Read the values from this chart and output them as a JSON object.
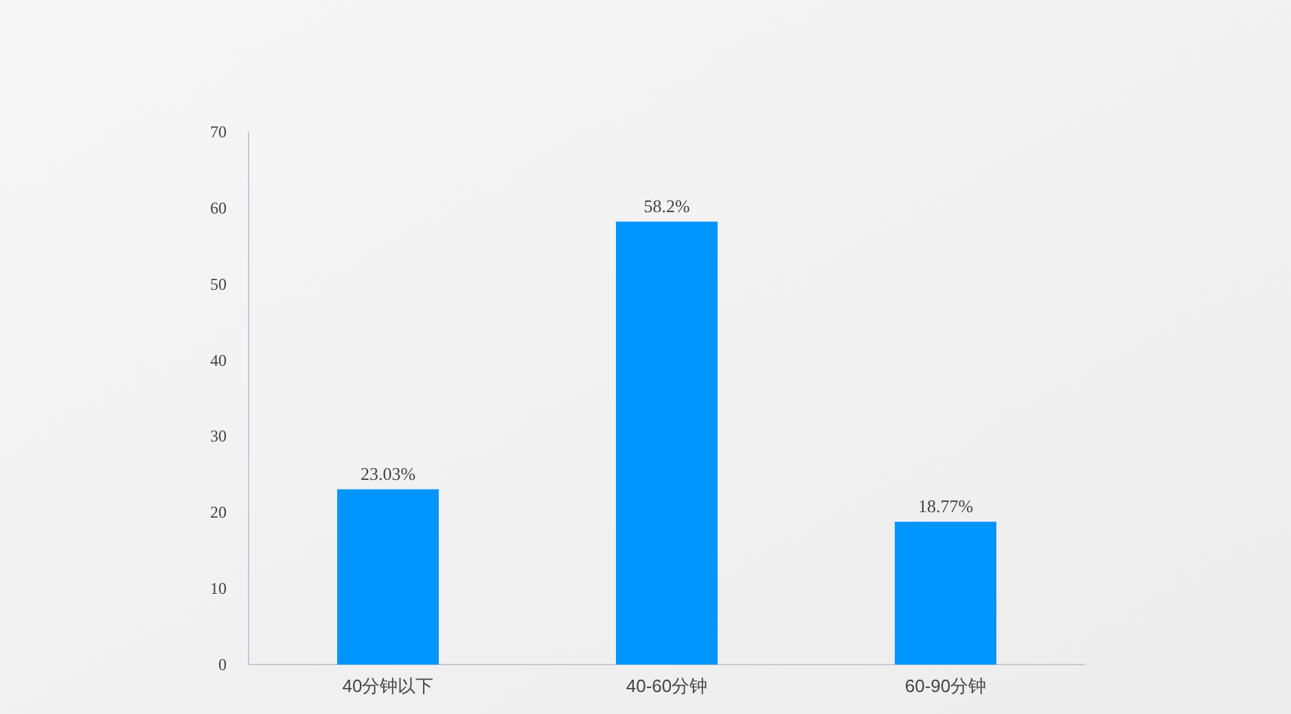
{
  "chart_data": {
    "type": "bar",
    "categories": [
      "40分钟以下",
      "40-60分钟",
      "60-90分钟"
    ],
    "values": [
      23.03,
      58.2,
      18.77
    ],
    "value_labels": [
      "23.03%",
      "58.2%",
      "18.77%"
    ],
    "color": "#0095fd",
    "ylim": [
      0,
      70
    ],
    "yticks": [
      0,
      10,
      20,
      30,
      40,
      50,
      60,
      70
    ],
    "grid": false
  }
}
